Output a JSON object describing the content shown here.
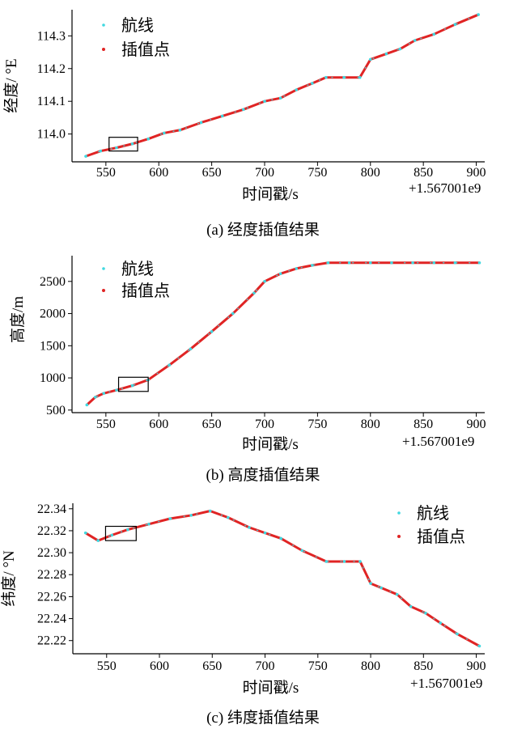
{
  "colors": {
    "route": "#40d8e0",
    "interp": "#e02424",
    "axis": "#000000"
  },
  "charts": [
    {
      "chart_data": {
        "type": "line",
        "xlabel": "时间戳/s",
        "ylabel": "经度/ °E",
        "x_offset_label": "+1.567001e9",
        "xlim": [
          518,
          908
        ],
        "ylim": [
          113.915,
          114.38
        ],
        "xticks": [
          550,
          600,
          650,
          700,
          750,
          800,
          850,
          900
        ],
        "yticks": [
          114.0,
          114.1,
          114.2,
          114.3
        ],
        "ytick_labels": [
          "114.0",
          "114.1",
          "114.2",
          "114.3"
        ],
        "legend_placement": "top-left",
        "series": [
          {
            "name": "航线",
            "marker": "dot",
            "color": "#40d8e0",
            "x": [
              531,
              545,
              560,
              575,
              590,
              605,
              620,
              640,
              660,
              680,
              700,
              715,
              730,
              745,
              758,
              775,
              790,
              800,
              815,
              828,
              842,
              860,
              880,
              902
            ],
            "y": [
              113.932,
              113.948,
              113.958,
              113.97,
              113.985,
              114.003,
              114.012,
              114.035,
              114.055,
              114.075,
              114.1,
              114.11,
              114.135,
              114.155,
              114.173,
              114.173,
              114.173,
              114.228,
              114.245,
              114.26,
              114.286,
              114.305,
              114.335,
              114.365
            ]
          },
          {
            "name": "插值点",
            "marker": "line",
            "color": "#e02424",
            "x": [
              531,
              545,
              560,
              575,
              590,
              605,
              620,
              640,
              660,
              680,
              700,
              715,
              730,
              745,
              758,
              775,
              790,
              800,
              815,
              828,
              842,
              860,
              880,
              902
            ],
            "y": [
              113.932,
              113.948,
              113.958,
              113.97,
              113.985,
              114.003,
              114.012,
              114.035,
              114.055,
              114.075,
              114.1,
              114.11,
              114.135,
              114.155,
              114.173,
              114.173,
              114.173,
              114.228,
              114.245,
              114.26,
              114.286,
              114.305,
              114.335,
              114.365
            ]
          }
        ],
        "annotation_box": {
          "x": [
            553,
            580
          ],
          "y": [
            113.948,
            113.99
          ]
        }
      },
      "caption": "(a) 经度插值结果"
    },
    {
      "chart_data": {
        "type": "line",
        "xlabel": "时间戳/s",
        "ylabel": "高度/m",
        "x_offset_label": "+1.567001e9",
        "xlim": [
          518,
          908
        ],
        "ylim": [
          460,
          2900
        ],
        "xticks": [
          550,
          600,
          650,
          700,
          750,
          800,
          850,
          900
        ],
        "yticks": [
          500,
          1000,
          1500,
          2000,
          2500
        ],
        "ytick_labels": [
          "500",
          "1000",
          "1500",
          "2000",
          "2500"
        ],
        "legend_placement": "top-left",
        "series": [
          {
            "name": "航线",
            "marker": "dot",
            "color": "#40d8e0",
            "x": [
              532,
              540,
              548,
              560,
              575,
              590,
              610,
              630,
              650,
              670,
              690,
              700,
              715,
              730,
              745,
              760,
              780,
              800,
              820,
              840,
              860,
              880,
              903
            ],
            "y": [
              580,
              700,
              760,
              810,
              880,
              970,
              1200,
              1450,
              1720,
              2000,
              2320,
              2500,
              2620,
              2700,
              2750,
              2790,
              2790,
              2790,
              2790,
              2790,
              2790,
              2790,
              2790
            ]
          },
          {
            "name": "插值点",
            "marker": "line",
            "color": "#e02424",
            "x": [
              532,
              540,
              548,
              560,
              575,
              590,
              610,
              630,
              650,
              670,
              690,
              700,
              715,
              730,
              745,
              760,
              780,
              800,
              820,
              840,
              860,
              880,
              903
            ],
            "y": [
              580,
              700,
              760,
              810,
              880,
              970,
              1200,
              1450,
              1720,
              2000,
              2320,
              2500,
              2620,
              2700,
              2750,
              2790,
              2790,
              2790,
              2790,
              2790,
              2790,
              2790,
              2790
            ]
          }
        ],
        "annotation_box": {
          "x": [
            562,
            590
          ],
          "y": [
            790,
            1010
          ]
        }
      },
      "caption": "(b) 高度插值结果"
    },
    {
      "chart_data": {
        "type": "line",
        "xlabel": "时间戳/s",
        "ylabel": "纬度/ °N",
        "x_offset_label": "+1.567001e9",
        "xlim": [
          518,
          908
        ],
        "ylim": [
          22.208,
          22.345
        ],
        "xticks": [
          550,
          600,
          650,
          700,
          750,
          800,
          850,
          900
        ],
        "yticks": [
          22.22,
          22.24,
          22.26,
          22.28,
          22.3,
          22.32,
          22.34
        ],
        "ytick_labels": [
          "22.22",
          "22.24",
          "22.26",
          "22.28",
          "22.30",
          "22.32",
          "22.34"
        ],
        "legend_placement": "top-right",
        "series": [
          {
            "name": "航线",
            "marker": "dot",
            "color": "#40d8e0",
            "x": [
              530,
              542,
              555,
              570,
              590,
              610,
              630,
              648,
              665,
              685,
              700,
              715,
              735,
              758,
              775,
              790,
              800,
              810,
              825,
              838,
              852,
              866,
              882,
              903
            ],
            "y": [
              22.318,
              22.311,
              22.316,
              22.321,
              22.326,
              22.331,
              22.334,
              22.338,
              22.332,
              22.323,
              22.318,
              22.313,
              22.302,
              22.292,
              22.292,
              22.292,
              22.272,
              22.268,
              22.262,
              22.251,
              22.245,
              22.236,
              22.226,
              22.215
            ]
          },
          {
            "name": "插值点",
            "marker": "line",
            "color": "#e02424",
            "x": [
              530,
              542,
              555,
              570,
              590,
              610,
              630,
              648,
              665,
              685,
              700,
              715,
              735,
              758,
              775,
              790,
              800,
              810,
              825,
              838,
              852,
              866,
              882,
              903
            ],
            "y": [
              22.318,
              22.311,
              22.316,
              22.321,
              22.326,
              22.331,
              22.334,
              22.338,
              22.332,
              22.323,
              22.318,
              22.313,
              22.302,
              22.292,
              22.292,
              22.292,
              22.272,
              22.268,
              22.262,
              22.251,
              22.245,
              22.236,
              22.226,
              22.215
            ]
          }
        ],
        "annotation_box": {
          "x": [
            549,
            578
          ],
          "y": [
            22.311,
            22.324
          ]
        }
      },
      "caption": "(c) 纬度插值结果"
    }
  ]
}
